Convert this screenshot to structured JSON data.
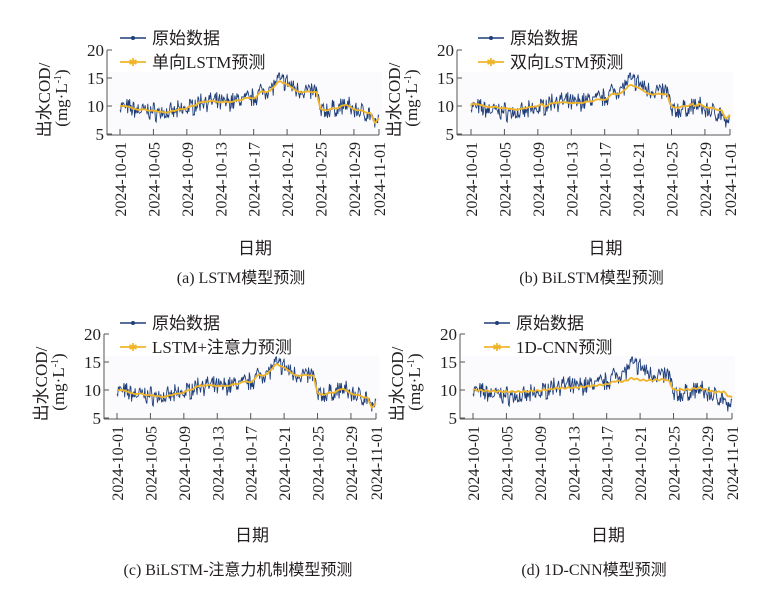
{
  "colors": {
    "raw": "#1f3f7a",
    "pred": "#f0b429",
    "axis": "#555555",
    "text": "#231f20",
    "plot_bg": "#fbfafc"
  },
  "chart_data": [
    {
      "type": "line",
      "id": "a",
      "caption": "(a) LSTM模型预测",
      "xlabel": "日期",
      "ylabel_line1": "出水COD/",
      "ylabel_line2": "(mg·L",
      "ylabel_sup": "-1",
      "ylabel_close": ")",
      "ylim": [
        5,
        20
      ],
      "yticks": [
        "5",
        "10",
        "15",
        "20"
      ],
      "xlim": [
        "2024-10-01",
        "2024-11-01"
      ],
      "xticks": [
        "2024-10-01",
        "2024-10-05",
        "2024-10-09",
        "2024-10-13",
        "2024-10-17",
        "2024-10-21",
        "2024-10-25",
        "2024-10-29",
        "2024-11-01"
      ],
      "legend": [
        "原始数据",
        "单向LSTM预测"
      ],
      "legend_position": "top-left",
      "pred_fit": 0.8,
      "pred_offset": 0
    },
    {
      "type": "line",
      "id": "b",
      "caption": "(b) BiLSTM模型预测",
      "xlabel": "日期",
      "ylabel_line1": "出水COD/",
      "ylabel_line2": "(mg·L",
      "ylabel_sup": "-1",
      "ylabel_close": ")",
      "ylim": [
        5,
        20
      ],
      "yticks": [
        "5",
        "10",
        "15",
        "20"
      ],
      "xlim": [
        "2024-10-01",
        "2024-11-01"
      ],
      "xticks": [
        "2024-10-01",
        "2024-10-05",
        "2024-10-09",
        "2024-10-13",
        "2024-10-17",
        "2024-10-21",
        "2024-10-25",
        "2024-10-29",
        "2024-11-01"
      ],
      "legend": [
        "原始数据",
        "双向LSTM预测"
      ],
      "legend_position": "top-left",
      "pred_fit": 0.55,
      "pred_offset": 0.3
    },
    {
      "type": "line",
      "id": "c",
      "caption": "(c) BiLSTM-注意力机制模型预测",
      "xlabel": "日期",
      "ylabel_line1": "出水COD/",
      "ylabel_line2": "(mg·L",
      "ylabel_sup": "-1",
      "ylabel_close": ")",
      "ylim": [
        5,
        20
      ],
      "yticks": [
        "5",
        "10",
        "15",
        "20"
      ],
      "xlim": [
        "2024-10-01",
        "2024-11-01"
      ],
      "xticks": [
        "2024-10-01",
        "2024-10-05",
        "2024-10-09",
        "2024-10-13",
        "2024-10-17",
        "2024-10-21",
        "2024-10-25",
        "2024-10-29",
        "2024-11-01"
      ],
      "legend": [
        "原始数据",
        "LSTM+注意力预测"
      ],
      "legend_position": "top-left",
      "pred_fit": 0.9,
      "pred_offset": 0
    },
    {
      "type": "line",
      "id": "d",
      "caption": "(d) 1D-CNN模型预测",
      "xlabel": "日期",
      "ylabel_line1": "出水COD/",
      "ylabel_line2": "(mg·L",
      "ylabel_sup": "-1",
      "ylabel_close": ")",
      "ylim": [
        5,
        20
      ],
      "yticks": [
        "5",
        "10",
        "15",
        "20"
      ],
      "xlim": [
        "2024-10-01",
        "2024-11-01"
      ],
      "xticks": [
        "2024-10-01",
        "2024-10-05",
        "2024-10-09",
        "2024-10-13",
        "2024-10-17",
        "2024-10-21",
        "2024-10-25",
        "2024-10-29",
        "2024-11-01"
      ],
      "legend": [
        "原始数据",
        "1D-CNN预测"
      ],
      "legend_position": "top-left",
      "pred_fit": 0.3,
      "pred_offset": 0.4
    }
  ],
  "series_trend": {
    "day": [
      0,
      2,
      4,
      6,
      8,
      10,
      12,
      14,
      16,
      17,
      18,
      19,
      20,
      21,
      22,
      23,
      23.5,
      24,
      26,
      27,
      28,
      29,
      30,
      30.5,
      31
    ],
    "raw_mean": [
      10,
      9.3,
      9.0,
      8.7,
      9.5,
      11,
      10.5,
      11,
      11.5,
      12.8,
      13,
      14.6,
      14.2,
      13,
      12.8,
      12.5,
      12.8,
      9,
      9.6,
      10.2,
      9.3,
      9,
      8.6,
      6.2,
      7.5
    ],
    "cnn_pred": [
      10,
      9.8,
      9.7,
      9.7,
      9.9,
      10.3,
      10.4,
      10.7,
      11,
      11.6,
      11.5,
      12.1,
      11.8,
      11.7,
      11.8,
      11.9,
      11.5,
      10,
      10.1,
      10.4,
      10,
      9.6,
      9.7,
      9,
      8.6
    ]
  }
}
